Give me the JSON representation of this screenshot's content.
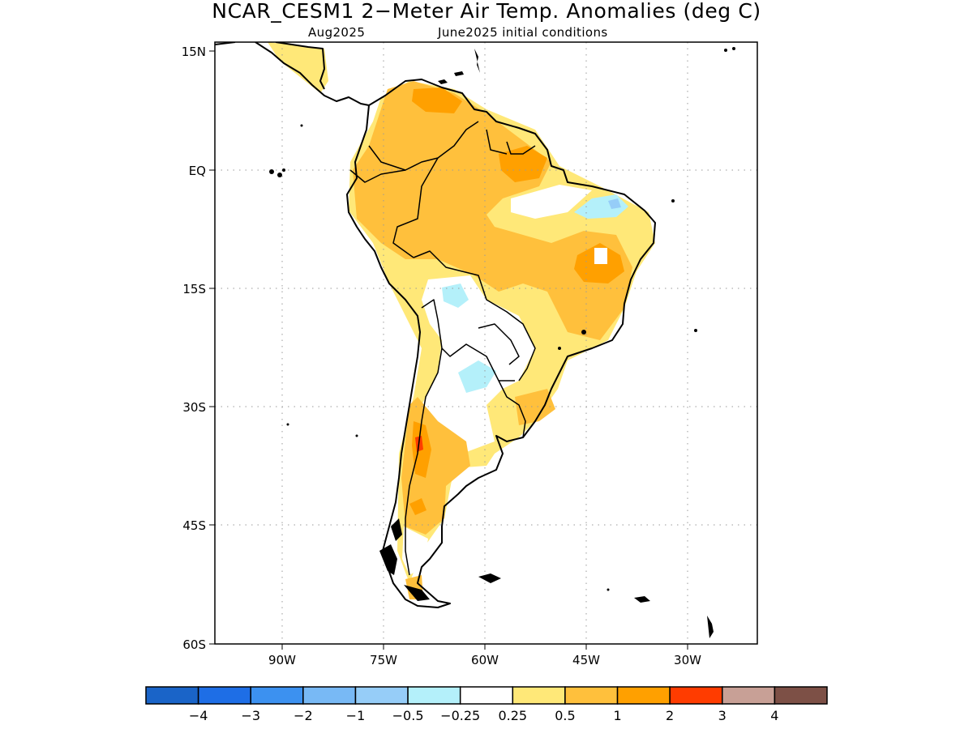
{
  "title": "NCAR_CESM1 2−Meter Air Temp. Anomalies (deg C)",
  "subtitle_left": "Aug2025",
  "subtitle_right": "June2025 initial conditions",
  "map": {
    "region": "South America",
    "lon_range": [
      -101.5,
      -21.3
    ],
    "lat_range": [
      -60,
      15
    ],
    "lat_ticks": [
      {
        "value": 15,
        "label": "15N"
      },
      {
        "value": 0,
        "label": "EQ"
      },
      {
        "value": -15,
        "label": "15S"
      },
      {
        "value": -30,
        "label": "30S"
      },
      {
        "value": -45,
        "label": "45S"
      },
      {
        "value": -60,
        "label": "60S"
      }
    ],
    "lon_ticks": [
      {
        "value": -90,
        "label": "90W"
      },
      {
        "value": -75,
        "label": "75W"
      },
      {
        "value": -60,
        "label": "60W"
      },
      {
        "value": -45,
        "label": "45W"
      },
      {
        "value": -30,
        "label": "30W"
      }
    ],
    "grid": true
  },
  "legend": {
    "colors": [
      "#1a64c8",
      "#1e6ee6",
      "#3c91f0",
      "#78b9f5",
      "#96cdf8",
      "#b4f0fa",
      "#ffffff",
      "#ffe878",
      "#ffc03c",
      "#ffa000",
      "#ff3c00",
      "#c8a096",
      "#7d5046"
    ],
    "labels": [
      "−4",
      "−3",
      "−2",
      "−1",
      "−0.5",
      "−0.25",
      "0.25",
      "0.5",
      "1",
      "2",
      "3",
      "4"
    ]
  }
}
